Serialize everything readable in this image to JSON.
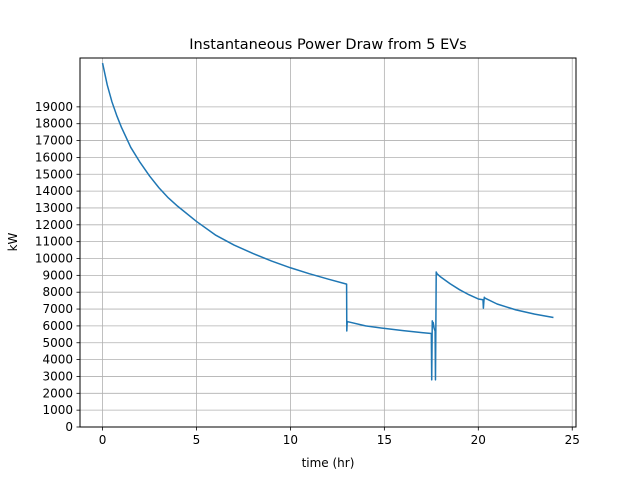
{
  "chart_data": {
    "type": "line",
    "title": "Instantaneous Power Draw from 5 EVs",
    "xlabel": "time (hr)",
    "ylabel": "kW",
    "xlim": [
      -1.2,
      25.2
    ],
    "ylim": [
      0,
      21900
    ],
    "x_ticks": [
      0,
      5,
      10,
      15,
      20,
      25
    ],
    "y_ticks": [
      0,
      1000,
      2000,
      3000,
      4000,
      5000,
      6000,
      7000,
      8000,
      9000,
      10000,
      11000,
      12000,
      13000,
      14000,
      15000,
      16000,
      17000,
      18000,
      19000
    ],
    "grid": true,
    "series_color": "#1f77b4",
    "series": [
      {
        "x": [
          0.0,
          0.25,
          0.5,
          0.75,
          1.0,
          1.5,
          2.0,
          2.5,
          3.0,
          3.5,
          4.0,
          5.0,
          6.0,
          7.0,
          8.0,
          9.0,
          10.0,
          11.0,
          12.0,
          12.99,
          13.0,
          13.02,
          13.05,
          14.0,
          15.0,
          16.0,
          17.0,
          17.5,
          17.52,
          17.55,
          17.58,
          17.6,
          17.65,
          17.7,
          17.72,
          17.74,
          17.76,
          17.78,
          17.8,
          18.0,
          18.5,
          19.0,
          19.5,
          20.0,
          20.25,
          20.27,
          20.3,
          20.32,
          20.35,
          21.0,
          22.0,
          23.0,
          24.0
        ],
        "y": [
          21600,
          20300,
          19300,
          18500,
          17800,
          16600,
          15700,
          14900,
          14200,
          13600,
          13100,
          12200,
          11400,
          10800,
          10300,
          9850,
          9450,
          9100,
          8780,
          8480,
          5700,
          6200,
          6250,
          6000,
          5850,
          5720,
          5600,
          5550,
          2800,
          6300,
          5950,
          6200,
          5850,
          5700,
          2800,
          5800,
          9200,
          9150,
          9100,
          8900,
          8500,
          8150,
          7850,
          7600,
          7550,
          7050,
          7500,
          7700,
          7650,
          7300,
          6950,
          6700,
          6500
        ]
      }
    ]
  }
}
